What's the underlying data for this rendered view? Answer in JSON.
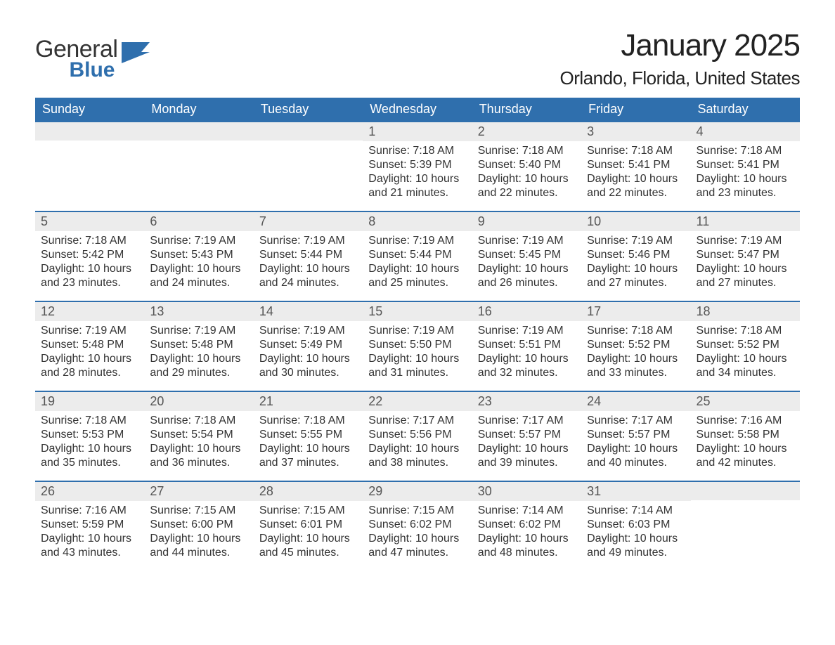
{
  "logo": {
    "general": "General",
    "blue": "Blue",
    "brand_color": "#2f6fad"
  },
  "header": {
    "month_title": "January 2025",
    "location": "Orlando, Florida, United States"
  },
  "styling": {
    "header_bg": "#2f6fad",
    "header_text": "#ffffff",
    "daynum_bg": "#ececec",
    "daynum_text": "#555555",
    "body_text": "#333333",
    "week_border": "#2f6fad",
    "page_bg": "#ffffff",
    "month_title_fontsize": 44,
    "location_fontsize": 26,
    "dayheader_fontsize": 18,
    "body_fontsize": 16
  },
  "day_headers": [
    "Sunday",
    "Monday",
    "Tuesday",
    "Wednesday",
    "Thursday",
    "Friday",
    "Saturday"
  ],
  "labels": {
    "sunrise": "Sunrise: ",
    "sunset": "Sunset: ",
    "daylight_prefix": "Daylight: ",
    "and_minutes_suffix": " minutes."
  },
  "weeks": [
    [
      null,
      null,
      null,
      {
        "n": "1",
        "sunrise": "7:18 AM",
        "sunset": "5:39 PM",
        "dl1": "10 hours",
        "dl2": "and 21 minutes."
      },
      {
        "n": "2",
        "sunrise": "7:18 AM",
        "sunset": "5:40 PM",
        "dl1": "10 hours",
        "dl2": "and 22 minutes."
      },
      {
        "n": "3",
        "sunrise": "7:18 AM",
        "sunset": "5:41 PM",
        "dl1": "10 hours",
        "dl2": "and 22 minutes."
      },
      {
        "n": "4",
        "sunrise": "7:18 AM",
        "sunset": "5:41 PM",
        "dl1": "10 hours",
        "dl2": "and 23 minutes."
      }
    ],
    [
      {
        "n": "5",
        "sunrise": "7:18 AM",
        "sunset": "5:42 PM",
        "dl1": "10 hours",
        "dl2": "and 23 minutes."
      },
      {
        "n": "6",
        "sunrise": "7:19 AM",
        "sunset": "5:43 PM",
        "dl1": "10 hours",
        "dl2": "and 24 minutes."
      },
      {
        "n": "7",
        "sunrise": "7:19 AM",
        "sunset": "5:44 PM",
        "dl1": "10 hours",
        "dl2": "and 24 minutes."
      },
      {
        "n": "8",
        "sunrise": "7:19 AM",
        "sunset": "5:44 PM",
        "dl1": "10 hours",
        "dl2": "and 25 minutes."
      },
      {
        "n": "9",
        "sunrise": "7:19 AM",
        "sunset": "5:45 PM",
        "dl1": "10 hours",
        "dl2": "and 26 minutes."
      },
      {
        "n": "10",
        "sunrise": "7:19 AM",
        "sunset": "5:46 PM",
        "dl1": "10 hours",
        "dl2": "and 27 minutes."
      },
      {
        "n": "11",
        "sunrise": "7:19 AM",
        "sunset": "5:47 PM",
        "dl1": "10 hours",
        "dl2": "and 27 minutes."
      }
    ],
    [
      {
        "n": "12",
        "sunrise": "7:19 AM",
        "sunset": "5:48 PM",
        "dl1": "10 hours",
        "dl2": "and 28 minutes."
      },
      {
        "n": "13",
        "sunrise": "7:19 AM",
        "sunset": "5:48 PM",
        "dl1": "10 hours",
        "dl2": "and 29 minutes."
      },
      {
        "n": "14",
        "sunrise": "7:19 AM",
        "sunset": "5:49 PM",
        "dl1": "10 hours",
        "dl2": "and 30 minutes."
      },
      {
        "n": "15",
        "sunrise": "7:19 AM",
        "sunset": "5:50 PM",
        "dl1": "10 hours",
        "dl2": "and 31 minutes."
      },
      {
        "n": "16",
        "sunrise": "7:19 AM",
        "sunset": "5:51 PM",
        "dl1": "10 hours",
        "dl2": "and 32 minutes."
      },
      {
        "n": "17",
        "sunrise": "7:18 AM",
        "sunset": "5:52 PM",
        "dl1": "10 hours",
        "dl2": "and 33 minutes."
      },
      {
        "n": "18",
        "sunrise": "7:18 AM",
        "sunset": "5:52 PM",
        "dl1": "10 hours",
        "dl2": "and 34 minutes."
      }
    ],
    [
      {
        "n": "19",
        "sunrise": "7:18 AM",
        "sunset": "5:53 PM",
        "dl1": "10 hours",
        "dl2": "and 35 minutes."
      },
      {
        "n": "20",
        "sunrise": "7:18 AM",
        "sunset": "5:54 PM",
        "dl1": "10 hours",
        "dl2": "and 36 minutes."
      },
      {
        "n": "21",
        "sunrise": "7:18 AM",
        "sunset": "5:55 PM",
        "dl1": "10 hours",
        "dl2": "and 37 minutes."
      },
      {
        "n": "22",
        "sunrise": "7:17 AM",
        "sunset": "5:56 PM",
        "dl1": "10 hours",
        "dl2": "and 38 minutes."
      },
      {
        "n": "23",
        "sunrise": "7:17 AM",
        "sunset": "5:57 PM",
        "dl1": "10 hours",
        "dl2": "and 39 minutes."
      },
      {
        "n": "24",
        "sunrise": "7:17 AM",
        "sunset": "5:57 PM",
        "dl1": "10 hours",
        "dl2": "and 40 minutes."
      },
      {
        "n": "25",
        "sunrise": "7:16 AM",
        "sunset": "5:58 PM",
        "dl1": "10 hours",
        "dl2": "and 42 minutes."
      }
    ],
    [
      {
        "n": "26",
        "sunrise": "7:16 AM",
        "sunset": "5:59 PM",
        "dl1": "10 hours",
        "dl2": "and 43 minutes."
      },
      {
        "n": "27",
        "sunrise": "7:15 AM",
        "sunset": "6:00 PM",
        "dl1": "10 hours",
        "dl2": "and 44 minutes."
      },
      {
        "n": "28",
        "sunrise": "7:15 AM",
        "sunset": "6:01 PM",
        "dl1": "10 hours",
        "dl2": "and 45 minutes."
      },
      {
        "n": "29",
        "sunrise": "7:15 AM",
        "sunset": "6:02 PM",
        "dl1": "10 hours",
        "dl2": "and 47 minutes."
      },
      {
        "n": "30",
        "sunrise": "7:14 AM",
        "sunset": "6:02 PM",
        "dl1": "10 hours",
        "dl2": "and 48 minutes."
      },
      {
        "n": "31",
        "sunrise": "7:14 AM",
        "sunset": "6:03 PM",
        "dl1": "10 hours",
        "dl2": "and 49 minutes."
      },
      null
    ]
  ]
}
